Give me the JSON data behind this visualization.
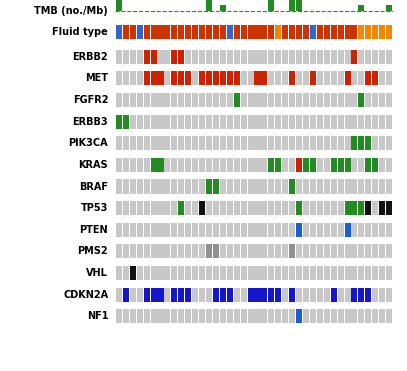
{
  "n_samples": 40,
  "fluid_type": [
    "blue",
    "red",
    "red",
    "blue",
    "red",
    "red",
    "red",
    "red",
    "red",
    "red",
    "red",
    "red",
    "red",
    "red",
    "red",
    "red",
    "blue",
    "red",
    "red",
    "red",
    "red",
    "red",
    "red",
    "orange",
    "red",
    "red",
    "red",
    "red",
    "blue",
    "red",
    "red",
    "red",
    "red",
    "red",
    "red",
    "orange",
    "orange",
    "orange",
    "orange",
    "orange"
  ],
  "tmb": [
    2,
    0,
    0,
    0,
    0,
    0,
    0,
    0,
    0,
    0,
    0,
    0,
    0,
    2,
    0,
    1,
    0,
    0,
    0,
    0,
    0,
    0,
    2,
    0,
    0,
    3,
    2,
    0,
    0,
    0,
    0,
    0,
    0,
    0,
    0,
    1,
    0,
    0,
    0,
    1
  ],
  "gene_data": {
    "ERBB2": [
      0,
      0,
      0,
      0,
      2,
      2,
      0,
      0,
      2,
      2,
      0,
      0,
      0,
      0,
      0,
      0,
      0,
      0,
      0,
      0,
      0,
      0,
      0,
      0,
      0,
      0,
      0,
      0,
      0,
      0,
      0,
      0,
      0,
      0,
      2,
      0,
      0,
      0,
      0,
      0
    ],
    "MET": [
      0,
      0,
      0,
      0,
      2,
      2,
      2,
      0,
      2,
      2,
      2,
      0,
      2,
      2,
      2,
      2,
      2,
      2,
      0,
      0,
      2,
      2,
      0,
      0,
      0,
      2,
      0,
      0,
      2,
      0,
      0,
      0,
      0,
      2,
      0,
      0,
      2,
      2,
      0,
      0
    ],
    "FGFR2": [
      0,
      0,
      0,
      0,
      0,
      0,
      0,
      0,
      0,
      0,
      0,
      0,
      0,
      0,
      0,
      0,
      0,
      1,
      0,
      0,
      0,
      0,
      0,
      0,
      0,
      0,
      0,
      0,
      0,
      0,
      0,
      0,
      0,
      0,
      0,
      1,
      0,
      0,
      0,
      0
    ],
    "ERBB3": [
      1,
      1,
      0,
      0,
      0,
      0,
      0,
      0,
      0,
      0,
      0,
      0,
      0,
      0,
      0,
      0,
      0,
      0,
      0,
      0,
      0,
      0,
      0,
      0,
      0,
      0,
      0,
      0,
      0,
      0,
      0,
      0,
      0,
      0,
      0,
      0,
      0,
      0,
      0,
      0
    ],
    "PIK3CA": [
      0,
      0,
      0,
      0,
      0,
      0,
      0,
      0,
      0,
      0,
      0,
      0,
      0,
      0,
      0,
      0,
      0,
      0,
      0,
      0,
      0,
      0,
      0,
      0,
      0,
      0,
      0,
      0,
      0,
      0,
      0,
      0,
      0,
      0,
      1,
      1,
      1,
      0,
      0,
      0
    ],
    "KRAS": [
      0,
      0,
      0,
      0,
      0,
      1,
      1,
      0,
      0,
      0,
      0,
      0,
      0,
      0,
      0,
      0,
      0,
      0,
      0,
      0,
      0,
      0,
      1,
      1,
      0,
      0,
      2,
      1,
      1,
      0,
      0,
      1,
      1,
      1,
      0,
      0,
      1,
      1,
      0,
      0
    ],
    "BRAF": [
      0,
      0,
      0,
      0,
      0,
      0,
      0,
      0,
      0,
      0,
      0,
      0,
      0,
      1,
      1,
      0,
      0,
      0,
      0,
      0,
      0,
      0,
      0,
      0,
      0,
      1,
      0,
      0,
      0,
      0,
      0,
      0,
      0,
      0,
      0,
      0,
      0,
      0,
      0,
      0
    ],
    "TP53": [
      0,
      0,
      0,
      0,
      0,
      0,
      0,
      0,
      0,
      1,
      0,
      0,
      3,
      0,
      0,
      0,
      0,
      0,
      0,
      0,
      0,
      0,
      0,
      0,
      0,
      0,
      1,
      0,
      0,
      0,
      0,
      0,
      0,
      1,
      1,
      1,
      3,
      0,
      3,
      3
    ],
    "PTEN": [
      0,
      0,
      0,
      0,
      0,
      0,
      0,
      0,
      0,
      0,
      0,
      0,
      0,
      0,
      0,
      0,
      0,
      0,
      0,
      0,
      0,
      0,
      0,
      0,
      0,
      0,
      4,
      0,
      0,
      0,
      0,
      0,
      0,
      4,
      0,
      0,
      0,
      0,
      0,
      0
    ],
    "PMS2": [
      0,
      0,
      0,
      0,
      0,
      0,
      0,
      0,
      0,
      0,
      0,
      0,
      0,
      5,
      5,
      0,
      0,
      0,
      0,
      0,
      0,
      0,
      0,
      0,
      0,
      5,
      0,
      0,
      0,
      0,
      0,
      0,
      0,
      0,
      0,
      0,
      0,
      0,
      0,
      0
    ],
    "VHL": [
      0,
      0,
      3,
      0,
      0,
      0,
      0,
      0,
      0,
      0,
      0,
      0,
      0,
      0,
      0,
      0,
      0,
      0,
      0,
      0,
      0,
      0,
      0,
      0,
      0,
      0,
      0,
      0,
      0,
      0,
      0,
      0,
      0,
      0,
      0,
      0,
      0,
      0,
      0,
      0
    ],
    "CDKN2A": [
      0,
      6,
      0,
      0,
      6,
      6,
      6,
      0,
      6,
      6,
      6,
      0,
      0,
      0,
      6,
      6,
      6,
      0,
      0,
      6,
      6,
      6,
      6,
      6,
      0,
      6,
      0,
      0,
      0,
      0,
      0,
      6,
      0,
      0,
      6,
      6,
      6,
      0,
      0,
      0
    ],
    "NF1": [
      0,
      0,
      0,
      0,
      0,
      0,
      0,
      0,
      0,
      0,
      0,
      0,
      0,
      0,
      0,
      0,
      0,
      0,
      0,
      0,
      0,
      0,
      0,
      0,
      0,
      0,
      4,
      0,
      0,
      0,
      0,
      0,
      0,
      0,
      0,
      0,
      0,
      0,
      0,
      0
    ]
  },
  "genes": [
    "ERBB2",
    "MET",
    "FGFR2",
    "ERBB3",
    "PIK3CA",
    "KRAS",
    "BRAF",
    "TP53",
    "PTEN",
    "PMS2",
    "VHL",
    "CDKN2A",
    "NF1"
  ],
  "color_map": {
    "0": "#c8c8c8",
    "1": "#228B22",
    "2": "#cc2200",
    "3": "#111111",
    "4": "#1a5fcc",
    "5": "#909090",
    "6": "#1515cc"
  },
  "fluid_colors": {
    "blue": "#3366cc",
    "red": "#cc3300",
    "orange": "#ee8800"
  },
  "tmb_color": "#228B22",
  "tmb_dash_color": "#228B22"
}
